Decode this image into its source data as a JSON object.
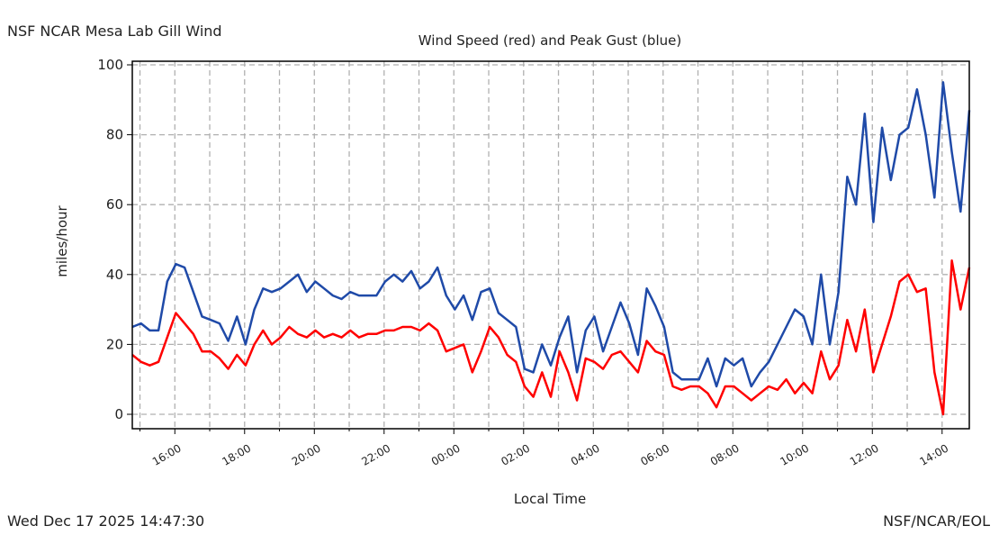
{
  "header_left": "NSF NCAR Mesa Lab Gill Wind",
  "footer_left": "Wed Dec 17 2025 14:47:30",
  "footer_right": "NSF/NCAR/EOL",
  "chart_data": {
    "type": "line",
    "title": "Wind Speed (red) and Peak Gust (blue)",
    "xlabel": "Local Time",
    "ylabel": "miles/hour",
    "ylim": [
      -4,
      105
    ],
    "xlim_hours": [
      14.78,
      38.78
    ],
    "grid": true,
    "yticks": [
      0,
      20,
      40,
      60,
      80,
      100
    ],
    "xticks": [
      {
        "hour": 16,
        "label": "16:00"
      },
      {
        "hour": 18,
        "label": "18:00"
      },
      {
        "hour": 20,
        "label": "20:00"
      },
      {
        "hour": 22,
        "label": "22:00"
      },
      {
        "hour": 24,
        "label": "00:00"
      },
      {
        "hour": 26,
        "label": "02:00"
      },
      {
        "hour": 28,
        "label": "04:00"
      },
      {
        "hour": 30,
        "label": "06:00"
      },
      {
        "hour": 32,
        "label": "08:00"
      },
      {
        "hour": 34,
        "label": "10:00"
      },
      {
        "hour": 36,
        "label": "12:00"
      },
      {
        "hour": 38,
        "label": "14:00"
      }
    ],
    "x_start_hours": 14.78,
    "x_step_hours": 0.25,
    "series": [
      {
        "name": "Peak Gust",
        "color": "#1f4aa8",
        "values": [
          25,
          26,
          24,
          24,
          38,
          43,
          42,
          35,
          28,
          27,
          26,
          21,
          28,
          20,
          30,
          36,
          35,
          36,
          38,
          40,
          35,
          38,
          36,
          34,
          33,
          35,
          34,
          34,
          34,
          38,
          40,
          38,
          41,
          36,
          38,
          42,
          34,
          30,
          34,
          27,
          35,
          36,
          29,
          27,
          25,
          13,
          12,
          20,
          14,
          22,
          28,
          12,
          24,
          28,
          18,
          25,
          32,
          26,
          17,
          36,
          31,
          25,
          12,
          10,
          10,
          10,
          16,
          8,
          16,
          14,
          16,
          8,
          12,
          15,
          20,
          25,
          30,
          28,
          20,
          40,
          20,
          35,
          68,
          60,
          86,
          55,
          82,
          67,
          80,
          82,
          93,
          80,
          62,
          95,
          75,
          58,
          87
        ]
      },
      {
        "name": "Wind Speed",
        "color": "#ff0000",
        "values": [
          17,
          15,
          14,
          15,
          22,
          29,
          26,
          23,
          18,
          18,
          16,
          13,
          17,
          14,
          20,
          24,
          20,
          22,
          25,
          23,
          22,
          24,
          22,
          23,
          22,
          24,
          22,
          23,
          23,
          24,
          24,
          25,
          25,
          24,
          26,
          24,
          18,
          19,
          20,
          12,
          18,
          25,
          22,
          17,
          15,
          8,
          5,
          12,
          5,
          18,
          12,
          4,
          16,
          15,
          13,
          17,
          18,
          15,
          12,
          21,
          18,
          17,
          8,
          7,
          8,
          8,
          6,
          2,
          8,
          8,
          6,
          4,
          6,
          8,
          7,
          10,
          6,
          9,
          6,
          18,
          10,
          14,
          27,
          18,
          30,
          12,
          20,
          28,
          38,
          40,
          35,
          36,
          12,
          0,
          44,
          30,
          42
        ]
      }
    ]
  }
}
